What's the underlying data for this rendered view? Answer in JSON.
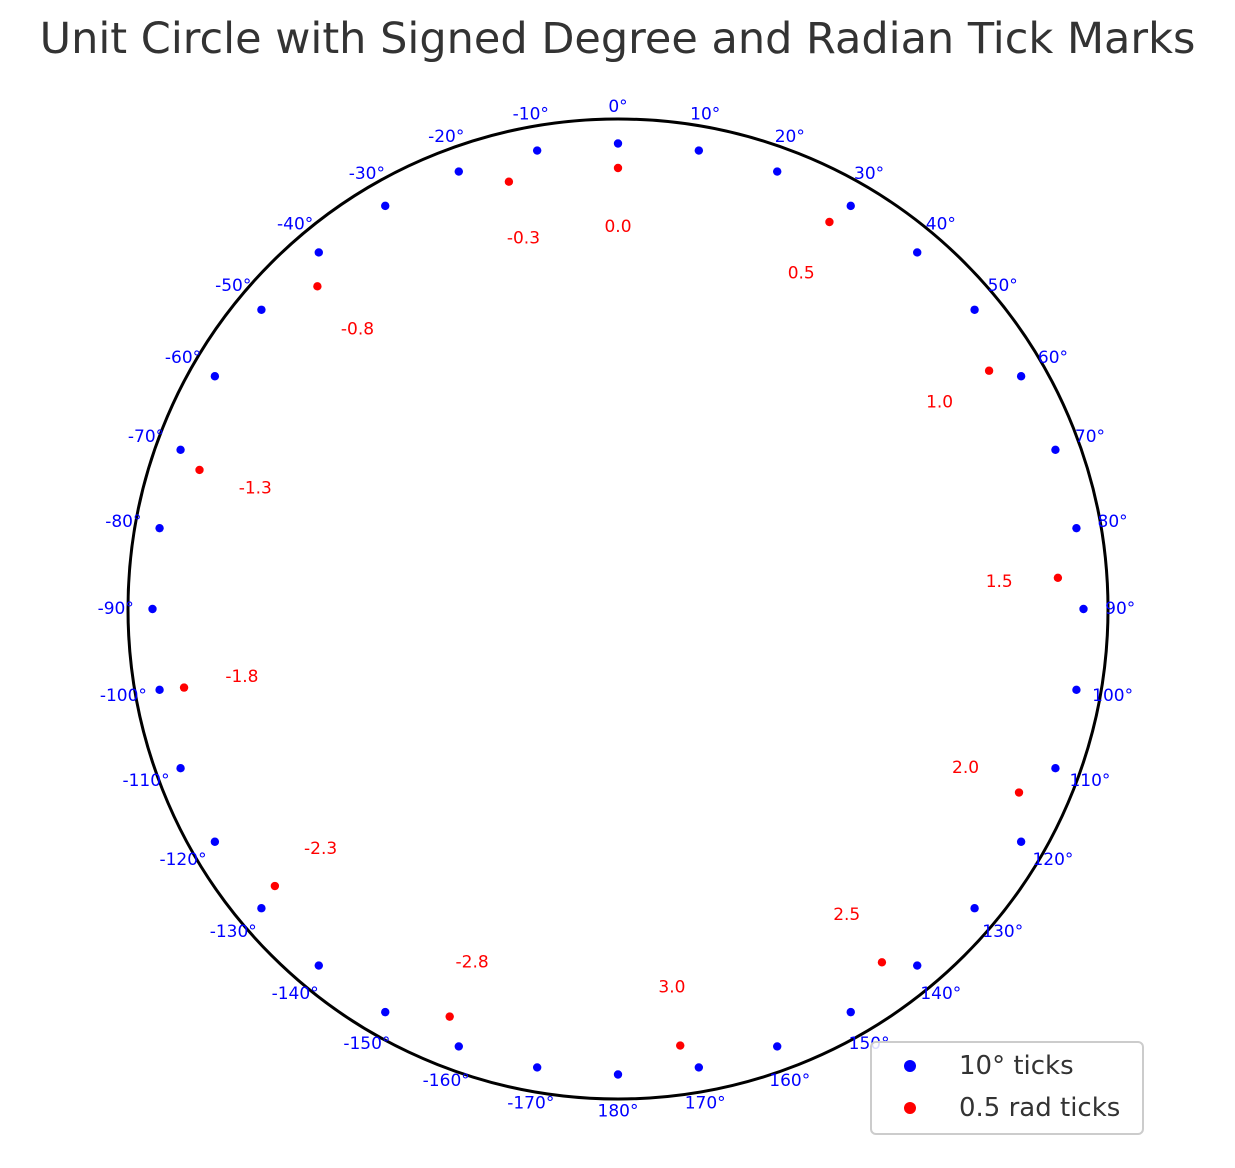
{
  "chart_data": {
    "type": "scatter",
    "title": "Unit Circle with Signed Degree and Radian Tick Marks",
    "xlabel": "",
    "ylabel": "",
    "grid": false,
    "axes_visible": false,
    "zero_direction": "top",
    "rotation": "clockwise",
    "circle": {
      "radius": 1.0,
      "color": "#000000"
    },
    "legend": {
      "position": "bottom-right",
      "entries": [
        "10° ticks",
        "0.5 rad ticks"
      ]
    },
    "series": [
      {
        "name": "10° ticks",
        "color": "#0000ff",
        "radius": 0.95,
        "label_radius": 1.025,
        "angles_deg": [
          0,
          10,
          20,
          30,
          40,
          50,
          60,
          70,
          80,
          90,
          100,
          110,
          120,
          130,
          140,
          150,
          160,
          170,
          180,
          -170,
          -160,
          -150,
          -140,
          -130,
          -120,
          -110,
          -100,
          -90,
          -80,
          -70,
          -60,
          -50,
          -40,
          -30,
          -20,
          -10
        ],
        "labels": [
          "0°",
          "10°",
          "20°",
          "30°",
          "40°",
          "50°",
          "60°",
          "70°",
          "80°",
          "90°",
          "100°",
          "110°",
          "120°",
          "130°",
          "140°",
          "150°",
          "160°",
          "170°",
          "180°",
          "-170°",
          "-160°",
          "-150°",
          "-140°",
          "-130°",
          "-120°",
          "-110°",
          "-100°",
          "-90°",
          "-80°",
          "-70°",
          "-60°",
          "-50°",
          "-40°",
          "-30°",
          "-20°",
          "-10°"
        ]
      },
      {
        "name": "0.5 rad ticks",
        "color": "#ff0000",
        "radius": 0.9,
        "label_radius": 0.78,
        "angles_rad": [
          0.0,
          0.5,
          1.0,
          1.5,
          2.0,
          2.5,
          3.0,
          -0.25,
          -0.75,
          -1.25,
          -1.75,
          -2.25,
          -2.75
        ],
        "labels": [
          "0.0",
          "0.5",
          "1.0",
          "1.5",
          "2.0",
          "2.5",
          "3.0",
          "-0.3",
          "-0.8",
          "-1.3",
          "-1.8",
          "-2.3",
          "-2.8"
        ]
      }
    ]
  }
}
